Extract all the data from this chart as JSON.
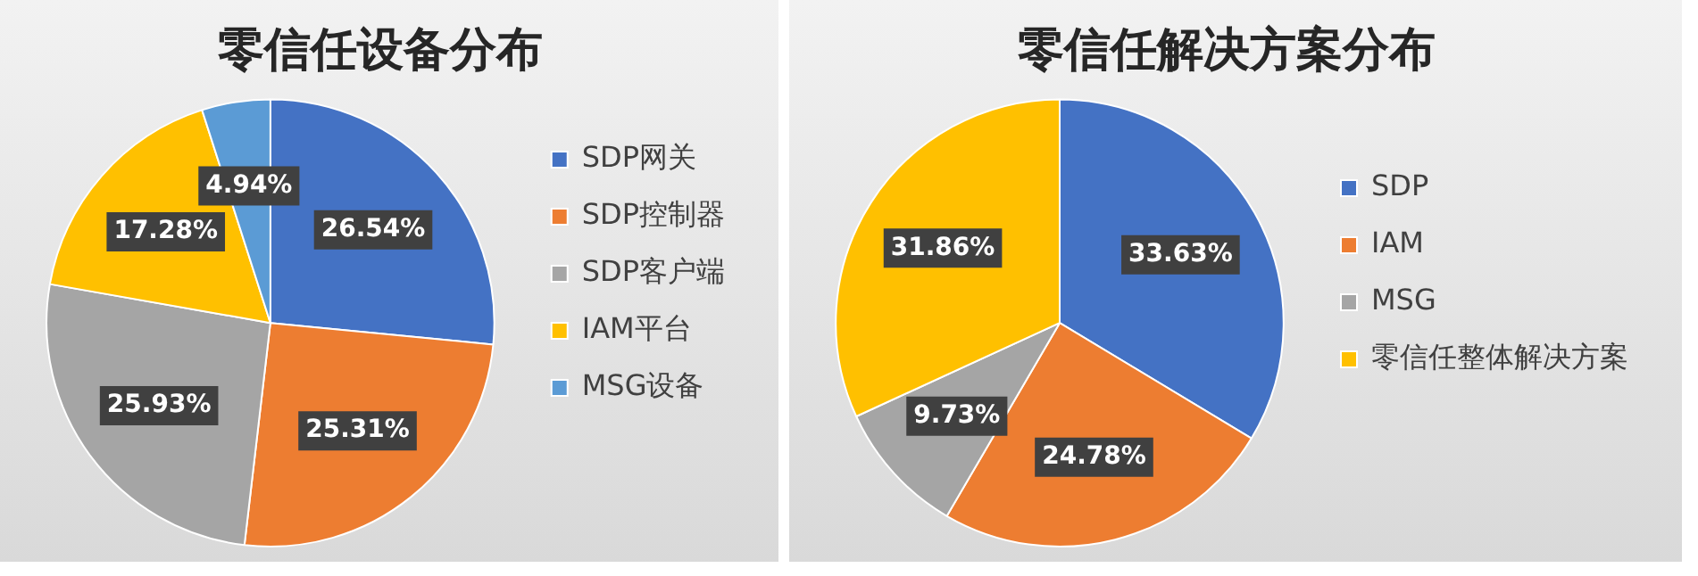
{
  "chart_data": [
    {
      "type": "pie",
      "title": "零信任设备分布",
      "categories": [
        "SDP网关",
        "SDP控制器",
        "SDP客户端",
        "IAM平台",
        "MSG设备"
      ],
      "values": [
        26.54,
        25.31,
        25.93,
        17.28,
        4.94
      ],
      "value_labels": [
        "26.54%",
        "25.31%",
        "25.93%",
        "17.28%",
        "4.94%"
      ],
      "colors": [
        "#4472c4",
        "#ed7d31",
        "#a5a5a5",
        "#ffc000",
        "#5b9bd5"
      ],
      "legend": "right"
    },
    {
      "type": "pie",
      "title": "零信任解决方案分布",
      "categories": [
        "SDP",
        "IAM",
        "MSG",
        "零信任整体解决方案"
      ],
      "values": [
        33.63,
        24.78,
        9.73,
        31.86
      ],
      "value_labels": [
        "33.63%",
        "24.78%",
        "9.73%",
        "31.86%"
      ],
      "colors": [
        "#4472c4",
        "#ed7d31",
        "#a5a5a5",
        "#ffc000"
      ],
      "legend": "right"
    }
  ]
}
